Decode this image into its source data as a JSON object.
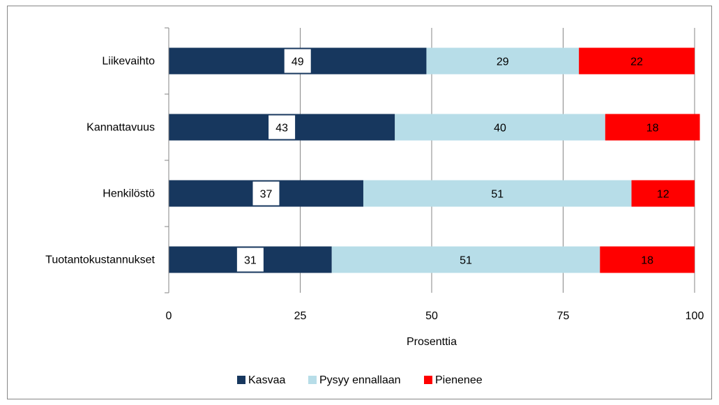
{
  "chart_data": {
    "type": "bar",
    "orientation": "horizontal",
    "stacked": true,
    "categories": [
      "Liikevaihto",
      "Kannattavuus",
      "Henkilöstö",
      "Tuotantokustannukset"
    ],
    "series": [
      {
        "name": "Kasvaa",
        "values": [
          49,
          43,
          37,
          31
        ],
        "color": "#17375e"
      },
      {
        "name": "Pysyy ennallaan",
        "values": [
          29,
          40,
          51,
          51
        ],
        "color": "#b7dde8"
      },
      {
        "name": "Pienenee",
        "values": [
          22,
          18,
          12,
          18
        ],
        "color": "#ff0000"
      }
    ],
    "xlabel": "Prosenttia",
    "ylabel": "",
    "xlim": [
      0,
      100
    ],
    "xticks": [
      0,
      25,
      50,
      75,
      100
    ],
    "grid": true,
    "legend_position": "bottom",
    "data_labels": true
  }
}
